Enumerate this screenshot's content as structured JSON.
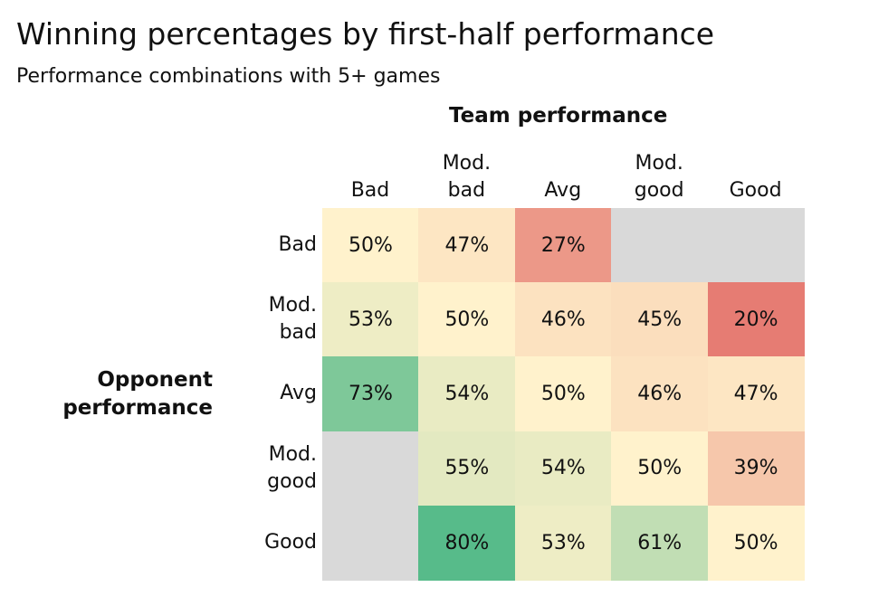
{
  "chart_data": {
    "type": "heatmap",
    "title": "Winning percentages by first-half performance",
    "subtitle": "Performance combinations with 5+ games",
    "xlabel": "Team performance",
    "ylabel": "Opponent performance",
    "x_categories": [
      "Bad",
      "Mod.\nbad",
      "Avg",
      "Mod.\ngood",
      "Good"
    ],
    "y_categories": [
      "Bad",
      "Mod.\nbad",
      "Avg",
      "Mod.\ngood",
      "Good"
    ],
    "values": [
      [
        50,
        47,
        27,
        null,
        null
      ],
      [
        53,
        50,
        46,
        45,
        20
      ],
      [
        73,
        54,
        50,
        46,
        47
      ],
      [
        null,
        55,
        54,
        50,
        39
      ],
      [
        null,
        80,
        53,
        61,
        50
      ]
    ],
    "labels": [
      [
        "50%",
        "47%",
        "27%",
        "",
        ""
      ],
      [
        "53%",
        "50%",
        "46%",
        "45%",
        "20%"
      ],
      [
        "73%",
        "54%",
        "50%",
        "46%",
        "47%"
      ],
      [
        "",
        "55%",
        "54%",
        "50%",
        "39%"
      ],
      [
        "",
        "80%",
        "53%",
        "61%",
        "50%"
      ]
    ],
    "color_scale": {
      "low": "#e67c73",
      "mid": "#fff2cc",
      "high": "#57bb8a",
      "missing": "#d9d9d9"
    }
  }
}
